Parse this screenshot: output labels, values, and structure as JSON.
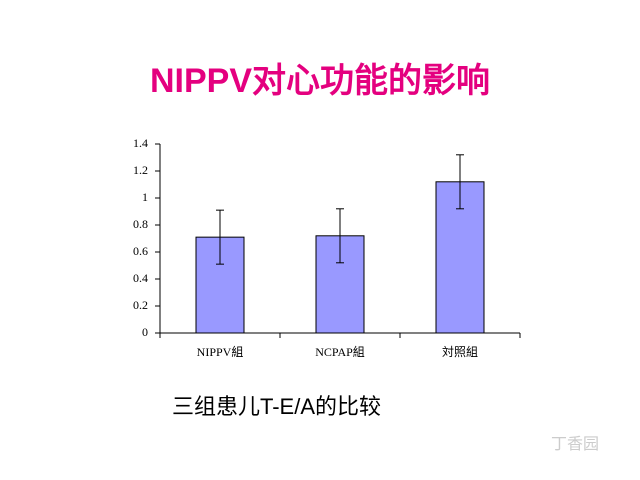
{
  "chart_data": {
    "type": "bar",
    "title": "NIPPV对心功能的影响",
    "caption": "三组患儿T-E/A的比较",
    "categories": [
      "NIPPV組",
      "NCPAP組",
      "対照組"
    ],
    "values": [
      0.71,
      0.72,
      1.12
    ],
    "errors": [
      0.2,
      0.2,
      0.2
    ],
    "color": "#9999ff",
    "ylim": [
      0,
      1.4
    ],
    "yticks": [
      0,
      0.2,
      0.4,
      0.6,
      0.8,
      1,
      1.2,
      1.4
    ],
    "grid": false
  },
  "watermark": "丁香园"
}
